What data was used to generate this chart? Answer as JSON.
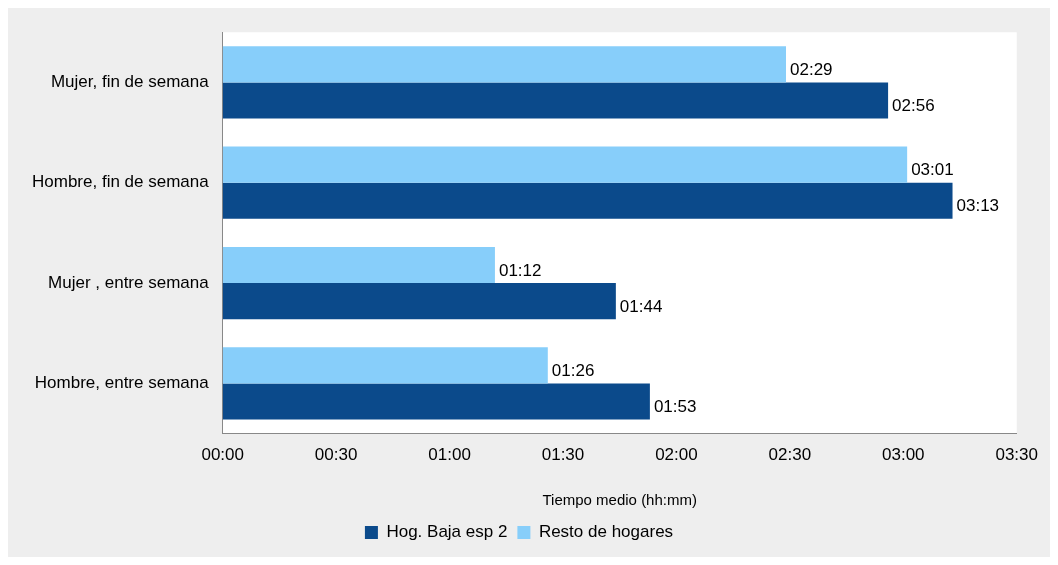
{
  "chart_data": {
    "type": "bar",
    "orientation": "horizontal",
    "xlabel": "Tiempo medio (hh:mm)",
    "categories": [
      "Mujer, fin de semana",
      "Hombre, fin de semana",
      "Mujer , entre semana",
      "Hombre, entre semana"
    ],
    "series": [
      {
        "name": "Hog. Baja esp 2",
        "color": "#0b4a8b",
        "values": [
          2.933,
          3.217,
          1.733,
          1.883
        ],
        "value_labels": [
          "02:56",
          "03:13",
          "01:44",
          "01:53"
        ]
      },
      {
        "name": "Resto de hogares",
        "color": "#87cefa",
        "values": [
          2.483,
          3.017,
          1.2,
          1.433
        ],
        "value_labels": [
          "02:29",
          "03:01",
          "01:12",
          "01:26"
        ]
      }
    ],
    "xlim": [
      0,
      3.5
    ],
    "xticks": [
      {
        "value": 0,
        "label": "00:00"
      },
      {
        "value": 0.5,
        "label": "00:30"
      },
      {
        "value": 1,
        "label": "01:00"
      },
      {
        "value": 1.5,
        "label": "01:30"
      },
      {
        "value": 2,
        "label": "02:00"
      },
      {
        "value": 2.5,
        "label": "02:30"
      },
      {
        "value": 3,
        "label": "03:00"
      },
      {
        "value": 3.5,
        "label": "03:30"
      }
    ],
    "grid": false,
    "legend": "bottom"
  }
}
